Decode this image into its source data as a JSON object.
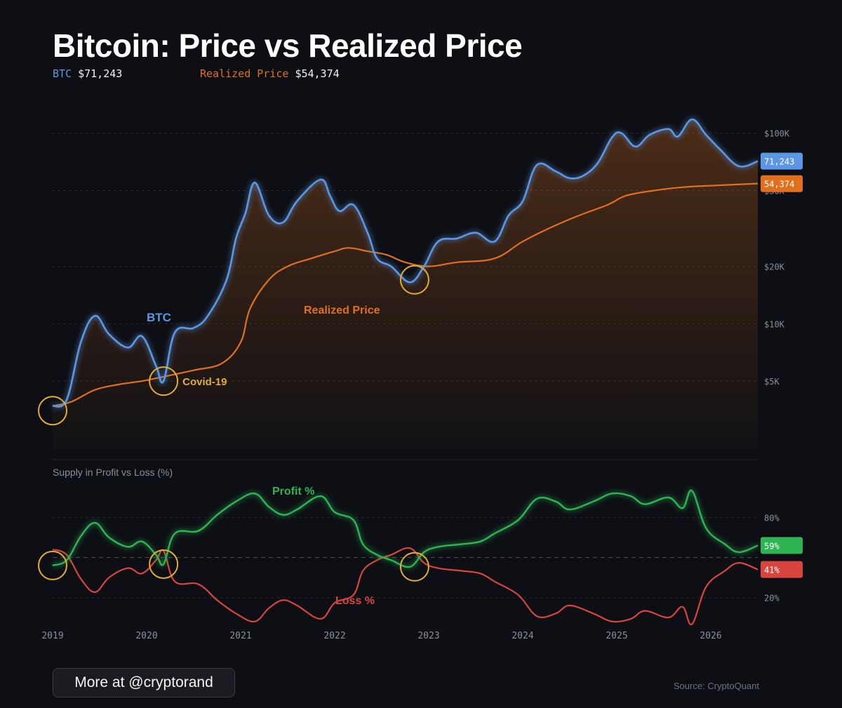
{
  "title": "Bitcoin: Price vs Realized Price",
  "legend": {
    "btc_label": "BTC",
    "btc_value": "$71,243",
    "realized_label": "Realized Price",
    "realized_value": "$54,374"
  },
  "colors": {
    "btc": "#5b97e6",
    "realized": "#e0701e",
    "profit": "#2fb454",
    "loss": "#d8453f",
    "annotation": "#e3ac33",
    "grid": "#2a2d34",
    "tick": "#8a8e96"
  },
  "footer": {
    "button_label": "More at @cryptorand",
    "source": "Source: CryptoQuant"
  },
  "chart_data": [
    {
      "type": "line",
      "title": "",
      "x_ticks": [
        "2019",
        "2020",
        "2021",
        "2022",
        "2023",
        "2024",
        "2025",
        "2026"
      ],
      "y_scale": "log",
      "ylim": [
        2200,
        140000
      ],
      "y_ticks": [
        {
          "value": 5000,
          "label": "$5K"
        },
        {
          "value": 10000,
          "label": "$10K"
        },
        {
          "value": 20000,
          "label": "$20K"
        },
        {
          "value": 50000,
          "label": "$50K"
        },
        {
          "value": 100000,
          "label": "$100K"
        }
      ],
      "series": [
        {
          "name": "BTC",
          "color": "#5b97e6",
          "end_label": "71,243",
          "points": [
            [
              2019.0,
              3700
            ],
            [
              2019.15,
              4000
            ],
            [
              2019.3,
              8000
            ],
            [
              2019.45,
              11000
            ],
            [
              2019.6,
              8800
            ],
            [
              2019.8,
              7500
            ],
            [
              2019.95,
              8600
            ],
            [
              2020.1,
              6000
            ],
            [
              2020.18,
              5000
            ],
            [
              2020.3,
              9000
            ],
            [
              2020.5,
              9500
            ],
            [
              2020.65,
              11000
            ],
            [
              2020.85,
              17000
            ],
            [
              2020.95,
              28000
            ],
            [
              2021.05,
              38000
            ],
            [
              2021.15,
              55000
            ],
            [
              2021.3,
              37000
            ],
            [
              2021.45,
              34000
            ],
            [
              2021.6,
              44000
            ],
            [
              2021.85,
              57000
            ],
            [
              2021.95,
              47000
            ],
            [
              2022.05,
              39000
            ],
            [
              2022.2,
              42000
            ],
            [
              2022.35,
              30000
            ],
            [
              2022.45,
              22000
            ],
            [
              2022.6,
              20000
            ],
            [
              2022.8,
              16500
            ],
            [
              2022.95,
              20000
            ],
            [
              2023.1,
              27000
            ],
            [
              2023.3,
              28000
            ],
            [
              2023.5,
              30000
            ],
            [
              2023.7,
              27000
            ],
            [
              2023.85,
              37000
            ],
            [
              2024.0,
              44000
            ],
            [
              2024.15,
              68000
            ],
            [
              2024.35,
              63000
            ],
            [
              2024.5,
              58000
            ],
            [
              2024.65,
              60000
            ],
            [
              2024.8,
              70000
            ],
            [
              2024.95,
              95000
            ],
            [
              2025.05,
              100000
            ],
            [
              2025.2,
              85000
            ],
            [
              2025.35,
              98000
            ],
            [
              2025.55,
              105000
            ],
            [
              2025.65,
              96000
            ],
            [
              2025.8,
              118000
            ],
            [
              2025.95,
              98000
            ],
            [
              2026.1,
              82000
            ],
            [
              2026.3,
              67000
            ],
            [
              2026.5,
              71243
            ]
          ]
        },
        {
          "name": "Realized Price",
          "color": "#e0701e",
          "end_label": "54,374",
          "points": [
            [
              2019.0,
              3700
            ],
            [
              2019.2,
              3900
            ],
            [
              2019.45,
              4500
            ],
            [
              2019.7,
              4800
            ],
            [
              2019.95,
              5000
            ],
            [
              2020.2,
              5300
            ],
            [
              2020.5,
              5700
            ],
            [
              2020.8,
              6200
            ],
            [
              2021.0,
              8000
            ],
            [
              2021.1,
              12000
            ],
            [
              2021.3,
              17000
            ],
            [
              2021.5,
              20000
            ],
            [
              2021.75,
              22000
            ],
            [
              2022.0,
              24000
            ],
            [
              2022.15,
              25000
            ],
            [
              2022.35,
              24000
            ],
            [
              2022.55,
              23000
            ],
            [
              2022.75,
              21000
            ],
            [
              2023.0,
              20000
            ],
            [
              2023.3,
              21000
            ],
            [
              2023.7,
              22000
            ],
            [
              2024.0,
              27000
            ],
            [
              2024.3,
              32000
            ],
            [
              2024.6,
              37000
            ],
            [
              2024.9,
              42000
            ],
            [
              2025.1,
              47000
            ],
            [
              2025.4,
              50000
            ],
            [
              2025.7,
              52000
            ],
            [
              2026.0,
              53000
            ],
            [
              2026.5,
              54374
            ]
          ]
        }
      ],
      "annotations": [
        {
          "x": 2019.0,
          "y": 3500,
          "label": ""
        },
        {
          "x": 2020.18,
          "y": 5000,
          "label": "Covid-19"
        },
        {
          "x": 2022.85,
          "y": 17000,
          "label": ""
        }
      ]
    },
    {
      "type": "line",
      "title": "Supply in Profit vs Loss (%)",
      "x_ticks": [
        "2019",
        "2020",
        "2021",
        "2022",
        "2023",
        "2024",
        "2025",
        "2026"
      ],
      "ylim": [
        5,
        105
      ],
      "y_ticks": [
        {
          "value": 20,
          "label": "20%"
        },
        {
          "value": 80,
          "label": "80%"
        }
      ],
      "reference_line": 50,
      "series": [
        {
          "name": "Profit %",
          "color": "#2fb454",
          "end_label": "59%",
          "points": [
            [
              2019.0,
              44
            ],
            [
              2019.15,
              48
            ],
            [
              2019.3,
              66
            ],
            [
              2019.45,
              76
            ],
            [
              2019.6,
              65
            ],
            [
              2019.8,
              58
            ],
            [
              2019.95,
              62
            ],
            [
              2020.1,
              52
            ],
            [
              2020.18,
              45
            ],
            [
              2020.3,
              68
            ],
            [
              2020.55,
              70
            ],
            [
              2020.75,
              82
            ],
            [
              2020.95,
              92
            ],
            [
              2021.15,
              98
            ],
            [
              2021.3,
              88
            ],
            [
              2021.45,
              82
            ],
            [
              2021.6,
              86
            ],
            [
              2021.85,
              96
            ],
            [
              2022.0,
              84
            ],
            [
              2022.2,
              78
            ],
            [
              2022.3,
              60
            ],
            [
              2022.45,
              52
            ],
            [
              2022.6,
              48
            ],
            [
              2022.8,
              43
            ],
            [
              2022.95,
              54
            ],
            [
              2023.1,
              58
            ],
            [
              2023.35,
              60
            ],
            [
              2023.55,
              62
            ],
            [
              2023.7,
              68
            ],
            [
              2023.95,
              78
            ],
            [
              2024.15,
              94
            ],
            [
              2024.35,
              92
            ],
            [
              2024.5,
              86
            ],
            [
              2024.75,
              92
            ],
            [
              2024.95,
              98
            ],
            [
              2025.15,
              96
            ],
            [
              2025.3,
              90
            ],
            [
              2025.55,
              95
            ],
            [
              2025.7,
              87
            ],
            [
              2025.8,
              100
            ],
            [
              2025.95,
              72
            ],
            [
              2026.15,
              60
            ],
            [
              2026.3,
              54
            ],
            [
              2026.5,
              59
            ]
          ]
        },
        {
          "name": "Loss %",
          "color": "#d8453f",
          "end_label": "41%",
          "points": [
            [
              2019.0,
              56
            ],
            [
              2019.15,
              52
            ],
            [
              2019.3,
              34
            ],
            [
              2019.45,
              24
            ],
            [
              2019.6,
              35
            ],
            [
              2019.8,
              42
            ],
            [
              2019.95,
              38
            ],
            [
              2020.1,
              48
            ],
            [
              2020.18,
              55
            ],
            [
              2020.3,
              32
            ],
            [
              2020.55,
              30
            ],
            [
              2020.75,
              18
            ],
            [
              2020.95,
              8
            ],
            [
              2021.15,
              2
            ],
            [
              2021.3,
              12
            ],
            [
              2021.45,
              18
            ],
            [
              2021.6,
              14
            ],
            [
              2021.85,
              4
            ],
            [
              2022.0,
              16
            ],
            [
              2022.2,
              22
            ],
            [
              2022.3,
              40
            ],
            [
              2022.45,
              48
            ],
            [
              2022.6,
              52
            ],
            [
              2022.8,
              57
            ],
            [
              2022.95,
              46
            ],
            [
              2023.1,
              42
            ],
            [
              2023.35,
              40
            ],
            [
              2023.55,
              38
            ],
            [
              2023.7,
              32
            ],
            [
              2023.95,
              22
            ],
            [
              2024.15,
              6
            ],
            [
              2024.35,
              8
            ],
            [
              2024.5,
              14
            ],
            [
              2024.75,
              8
            ],
            [
              2024.95,
              2
            ],
            [
              2025.15,
              4
            ],
            [
              2025.3,
              10
            ],
            [
              2025.55,
              5
            ],
            [
              2025.7,
              13
            ],
            [
              2025.8,
              0
            ],
            [
              2025.95,
              28
            ],
            [
              2026.15,
              40
            ],
            [
              2026.3,
              46
            ],
            [
              2026.5,
              41
            ]
          ]
        }
      ],
      "annotations": [
        {
          "x": 2019.0,
          "y": 44,
          "label": ""
        },
        {
          "x": 2020.18,
          "y": 45,
          "label": ""
        },
        {
          "x": 2022.85,
          "y": 43,
          "label": ""
        }
      ]
    }
  ]
}
